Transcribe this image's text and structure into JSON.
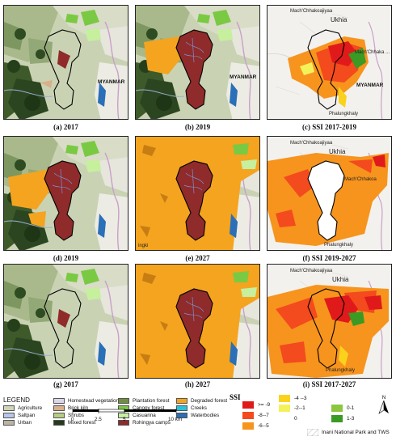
{
  "panels": [
    {
      "id": "a",
      "caption": "(a) 2017",
      "country_label": "MYANMAR"
    },
    {
      "id": "b",
      "caption": "(b)  2019",
      "country_label": "MYANMAR"
    },
    {
      "id": "c",
      "caption": "(c)  SSI 2017-2019",
      "labels": {
        "place1": "Mach'Chhakoajiyaa",
        "place2": "Ukhia",
        "place3": "Mach'Chhaka ...",
        "country": "MYANMAR",
        "place4": "Phalungkhaly"
      }
    },
    {
      "id": "d",
      "caption": "(d)  2019"
    },
    {
      "id": "e",
      "caption": "(e)   2027",
      "small_label": "ingki"
    },
    {
      "id": "f",
      "caption": "(f)   SSI 2019-2027",
      "labels": {
        "place1": "Mach'Chhakoajiyaa",
        "place2": "Ukhia",
        "place3": "Mach'Chhakoa",
        "place4": "Phalungkhaly"
      }
    },
    {
      "id": "g",
      "caption": "(g)   2017"
    },
    {
      "id": "h",
      "caption": "(h)  2027"
    },
    {
      "id": "i",
      "caption": "(i)    SSI 2017-2027",
      "labels": {
        "place1": "Mach'Chhakoajiyaa",
        "place2": "Ukhia",
        "place4": "Phalungkhaly"
      }
    }
  ],
  "legend": {
    "title": "LEGEND",
    "items": [
      {
        "label": "Agriculture",
        "color": "#cfd6b6"
      },
      {
        "label": "Saltpan",
        "color": "#b8c6ea"
      },
      {
        "label": "Urban",
        "color": "#b9b4a6"
      },
      {
        "label": "Homestead vegetation",
        "color": "#dcd6ea"
      },
      {
        "label": "Brick kiln",
        "color": "#d8b08a"
      },
      {
        "label": "Shrubs",
        "color": "#b6cc82"
      },
      {
        "label": "Mixed forest",
        "color": "#233b1c"
      },
      {
        "label": "Plantation forest",
        "color": "#6f8f3e"
      },
      {
        "label": "Canopy forest",
        "color": "#7ac943"
      },
      {
        "label": "Casuarina",
        "color": "#c6ef9e"
      },
      {
        "label": "Rohingya camps",
        "color": "#8f2b2b"
      },
      {
        "label": "Degraded forest",
        "color": "#f4a41f"
      },
      {
        "label": "Creeks",
        "color": "#28c2dc"
      },
      {
        "label": "Waterbodies",
        "color": "#2a6fb8"
      }
    ],
    "scale": {
      "ticks": [
        "0",
        "2.5",
        "5",
        "10 km"
      ]
    },
    "ssi": {
      "title": "SSI",
      "items": [
        {
          "label": ">= -9",
          "color": "#e01a1a"
        },
        {
          "label": "-8--7",
          "color": "#f34a1e"
        },
        {
          "label": "-6--5",
          "color": "#f7941d"
        },
        {
          "label": "-4 --3",
          "color": "#fad21c"
        },
        {
          "label": "-2--1",
          "color": "#f4f25a"
        },
        {
          "label": "0",
          "color": "#ffffff"
        },
        {
          "label": "0-1",
          "color": "#8cc63f"
        },
        {
          "label": "1-3",
          "color": "#3a9a24"
        }
      ],
      "park_label": "Inani National Park and TWS"
    },
    "north_label": "N"
  }
}
